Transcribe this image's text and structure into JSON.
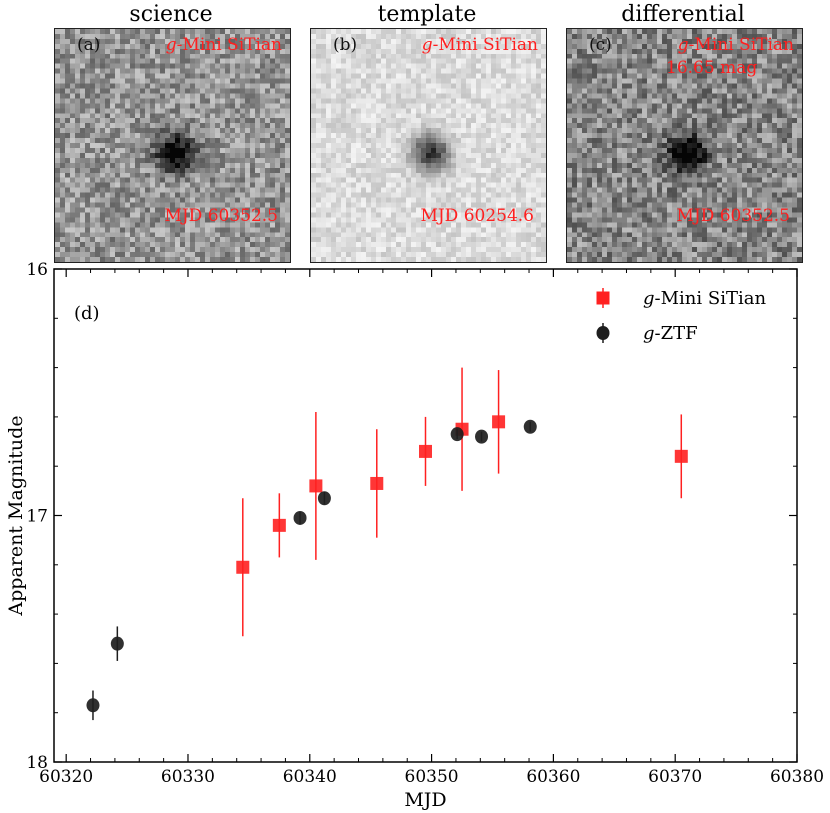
{
  "cutouts": [
    {
      "title": "science",
      "letter": "(a)",
      "filter": "g-Mini SiTian",
      "filter_italic": "g",
      "filter_rest": "-Mini SiTian",
      "extra": "",
      "mjd": "MJD 60352.5",
      "bg": 150,
      "noise": 50
    },
    {
      "title": "template",
      "letter": "(b)",
      "filter": "g-Mini SiTian",
      "filter_italic": "g",
      "filter_rest": "-Mini SiTian",
      "extra": "",
      "mjd": "MJD 60254.6",
      "bg": 220,
      "noise": 24
    },
    {
      "title": "differential",
      "letter": "(c)",
      "filter": "g-Mini SiTian",
      "filter_italic": "g",
      "filter_rest": "-Mini SiTian",
      "extra": "16.65 mag",
      "mjd": "MJD 60352.5",
      "bg": 135,
      "noise": 55
    }
  ],
  "chart_data": {
    "type": "scatter",
    "panel_label": "(d)",
    "xlabel": "MJD",
    "ylabel": "Apparent Magnitude",
    "xlim": [
      60319,
      60380
    ],
    "ylim": [
      18,
      16
    ],
    "y_inverted": true,
    "xticks": [
      60320,
      60330,
      60340,
      60350,
      60360,
      60370,
      60380
    ],
    "yticks": [
      16,
      17,
      18
    ],
    "legend_position": "top-right",
    "series": [
      {
        "name": "g-Mini SiTian",
        "name_italic": "g",
        "name_rest": "-Mini SiTian",
        "marker": "square",
        "color": "#ff2020",
        "points": [
          {
            "x": 60334.5,
            "y": 17.21,
            "err": 0.28
          },
          {
            "x": 60337.5,
            "y": 17.04,
            "err": 0.13
          },
          {
            "x": 60340.5,
            "y": 16.88,
            "err": 0.3
          },
          {
            "x": 60345.5,
            "y": 16.87,
            "err": 0.22
          },
          {
            "x": 60349.5,
            "y": 16.74,
            "err": 0.14
          },
          {
            "x": 60352.5,
            "y": 16.65,
            "err": 0.25
          },
          {
            "x": 60355.5,
            "y": 16.62,
            "err": 0.21
          },
          {
            "x": 60370.5,
            "y": 16.76,
            "err": 0.17
          }
        ]
      },
      {
        "name": "g-ZTF",
        "name_italic": "g",
        "name_rest": "-ZTF",
        "marker": "circle",
        "color": "#1e1e1e",
        "points": [
          {
            "x": 60322.2,
            "y": 17.77,
            "err": 0.06
          },
          {
            "x": 60324.2,
            "y": 17.52,
            "err": 0.07
          },
          {
            "x": 60339.2,
            "y": 17.01,
            "err": 0.025
          },
          {
            "x": 60341.2,
            "y": 16.93,
            "err": 0.025
          },
          {
            "x": 60352.1,
            "y": 16.67,
            "err": 0.02
          },
          {
            "x": 60354.1,
            "y": 16.68,
            "err": 0.02
          },
          {
            "x": 60358.1,
            "y": 16.64,
            "err": 0.02
          }
        ]
      }
    ]
  }
}
